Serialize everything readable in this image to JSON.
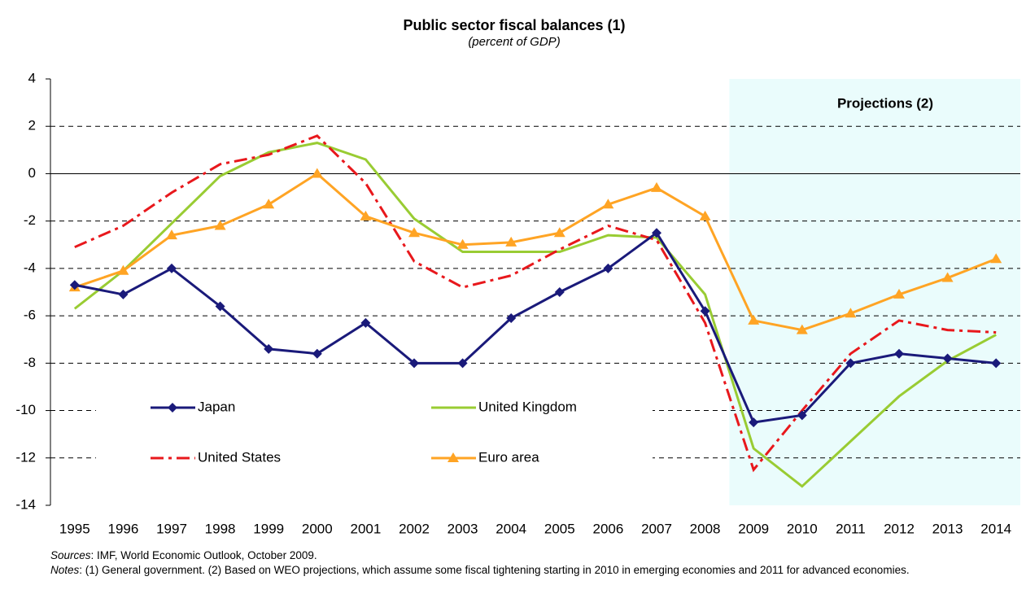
{
  "chart_data": {
    "type": "line",
    "title": "Public sector fiscal balances (1)",
    "subtitle": "(percent of GDP)",
    "annotation": "Projections (2)",
    "categories": [
      "1995",
      "1996",
      "1997",
      "1998",
      "1999",
      "2000",
      "2001",
      "2002",
      "2003",
      "2004",
      "2005",
      "2006",
      "2007",
      "2008",
      "2009",
      "2010",
      "2011",
      "2012",
      "2013",
      "2014"
    ],
    "projection_start": "2009",
    "series": [
      {
        "name": "Japan",
        "color": "#1a1a7a",
        "marker": "diamond",
        "dash": "solid",
        "values": [
          -4.7,
          -5.1,
          -4.0,
          -5.6,
          -7.4,
          -7.6,
          -6.3,
          -8.0,
          -8.0,
          -6.1,
          -5.0,
          -4.0,
          -2.5,
          -5.8,
          -10.5,
          -10.2,
          -8.0,
          -7.6,
          -7.8,
          -8.0
        ]
      },
      {
        "name": "United Kingdom",
        "color": "#99cc33",
        "marker": "none",
        "dash": "solid",
        "values": [
          -5.7,
          -4.1,
          -2.1,
          -0.1,
          0.9,
          1.3,
          0.6,
          -1.9,
          -3.3,
          -3.3,
          -3.3,
          -2.6,
          -2.7,
          -5.1,
          -11.6,
          -13.2,
          -11.3,
          -9.4,
          -7.9,
          -6.8
        ]
      },
      {
        "name": "United States",
        "color": "#e8181c",
        "marker": "none",
        "dash": "dashdot",
        "values": [
          -3.1,
          -2.2,
          -0.8,
          0.4,
          0.8,
          1.6,
          -0.4,
          -3.7,
          -4.8,
          -4.3,
          -3.2,
          -2.2,
          -2.8,
          -6.3,
          -12.5,
          -10.0,
          -7.6,
          -6.2,
          -6.6,
          -6.7
        ]
      },
      {
        "name": "Euro area",
        "color": "#ffa424",
        "marker": "triangle",
        "dash": "solid",
        "values": [
          -4.8,
          -4.1,
          -2.6,
          -2.2,
          -1.3,
          0.0,
          -1.8,
          -2.5,
          -3.0,
          -2.9,
          -2.5,
          -1.3,
          -0.6,
          -1.8,
          -6.2,
          -6.6,
          -5.9,
          -5.1,
          -4.4,
          -3.6
        ]
      }
    ],
    "ylim": [
      -14,
      4
    ],
    "yticks": [
      -14,
      -12,
      -10,
      -8,
      -6,
      -4,
      -2,
      0,
      2,
      4
    ],
    "grid": true,
    "sources_label": "Sources",
    "sources": ": IMF, World Economic Outlook, October 2009.",
    "notes_label": "Notes",
    "notes": ": (1) General government. (2) Based on WEO projections, which assume some fiscal tightening starting in 2010 in emerging economies and 2011 for advanced economies."
  }
}
